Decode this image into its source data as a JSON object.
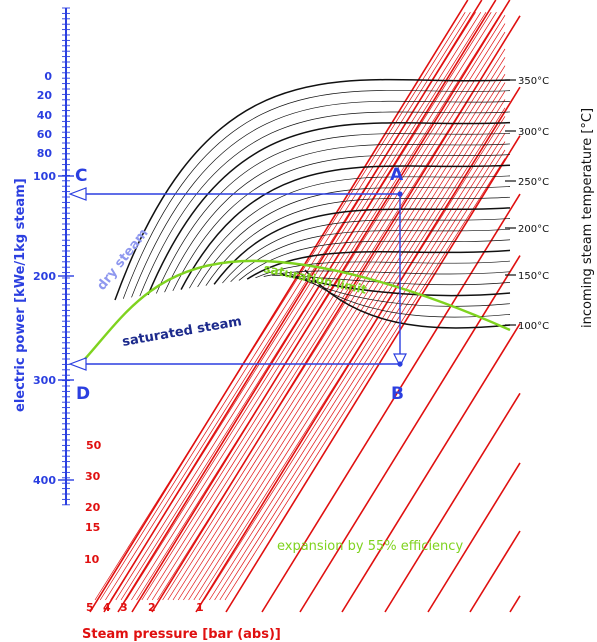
{
  "left_axis": {
    "label": "electric power  [kWe/1kg steam]",
    "ticks_major": [
      "100",
      "200",
      "300",
      "400"
    ],
    "ticks_minor": [
      "0",
      "20",
      "40",
      "60",
      "80"
    ],
    "color": "#2b3fe0"
  },
  "right_axis": {
    "label": "incoming steam temperature  [°C]",
    "ticks": [
      "350°C",
      "300°C",
      "250°C",
      "200°C",
      "150°C",
      "100°C"
    ]
  },
  "bottom_axis": {
    "label": "Steam pressure  [bar (abs)]",
    "ticks": [
      "5",
      "4",
      "3",
      "2",
      "1"
    ],
    "color": "#e01010"
  },
  "pressure_labels": [
    "50",
    "30",
    "20",
    "15",
    "10"
  ],
  "curve_labels": {
    "dry": "dry steam",
    "saturated": "saturated steam",
    "saturation": "saturation  limit"
  },
  "expansion_note": "expansion by 55% efficiency",
  "points": {
    "A": "A",
    "B": "B",
    "C": "C",
    "D": "D"
  },
  "colors": {
    "pressure": "#e01010",
    "isotherm": "#111111",
    "saturation": "#7fd31f",
    "construction": "#2b3fe0",
    "dry_steam_label": "#8f98ef",
    "saturated_label": "#1c2a8c"
  },
  "chart_data": {
    "type": "line",
    "title": "",
    "xlabel": "Steam pressure  [bar (abs)]",
    "ylabel": "electric power  [kWe/1kg steam]",
    "right_label": "incoming steam temperature  [°C]",
    "isotherms_degC": [
      350,
      300,
      250,
      200,
      150,
      100
    ],
    "pressure_lines_bar": [
      50,
      30,
      20,
      15,
      10,
      5,
      4,
      3,
      2,
      1
    ],
    "y_range": [
      0,
      450
    ],
    "example_path": [
      "A",
      "B",
      "D",
      "C"
    ],
    "example_values": {
      "A": {
        "electric_power": 120,
        "temperature_degC": 250
      },
      "B": {
        "electric_power": 285
      },
      "C": {
        "electric_power": 120
      },
      "D": {
        "electric_power": 285
      }
    }
  }
}
